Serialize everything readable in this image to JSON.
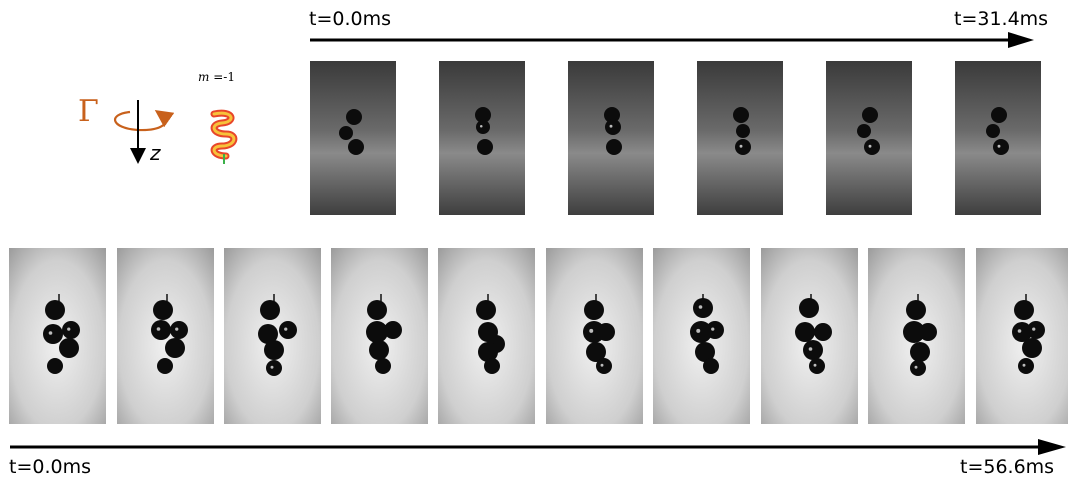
{
  "legend": {
    "gamma_symbol": "Γ",
    "axis_label": "z",
    "mode_var": "m",
    "mode_rest": " =-1",
    "accent_color": "#c8611c"
  },
  "top_sequence": {
    "start_label": "t=0.0ms",
    "end_label": "t=31.4ms",
    "frame_count": 6,
    "background": "dark-gradient"
  },
  "bottom_sequence": {
    "start_label": "t=0.0ms",
    "end_label": "t=56.6ms",
    "frame_count": 10,
    "background": "light-gray"
  }
}
